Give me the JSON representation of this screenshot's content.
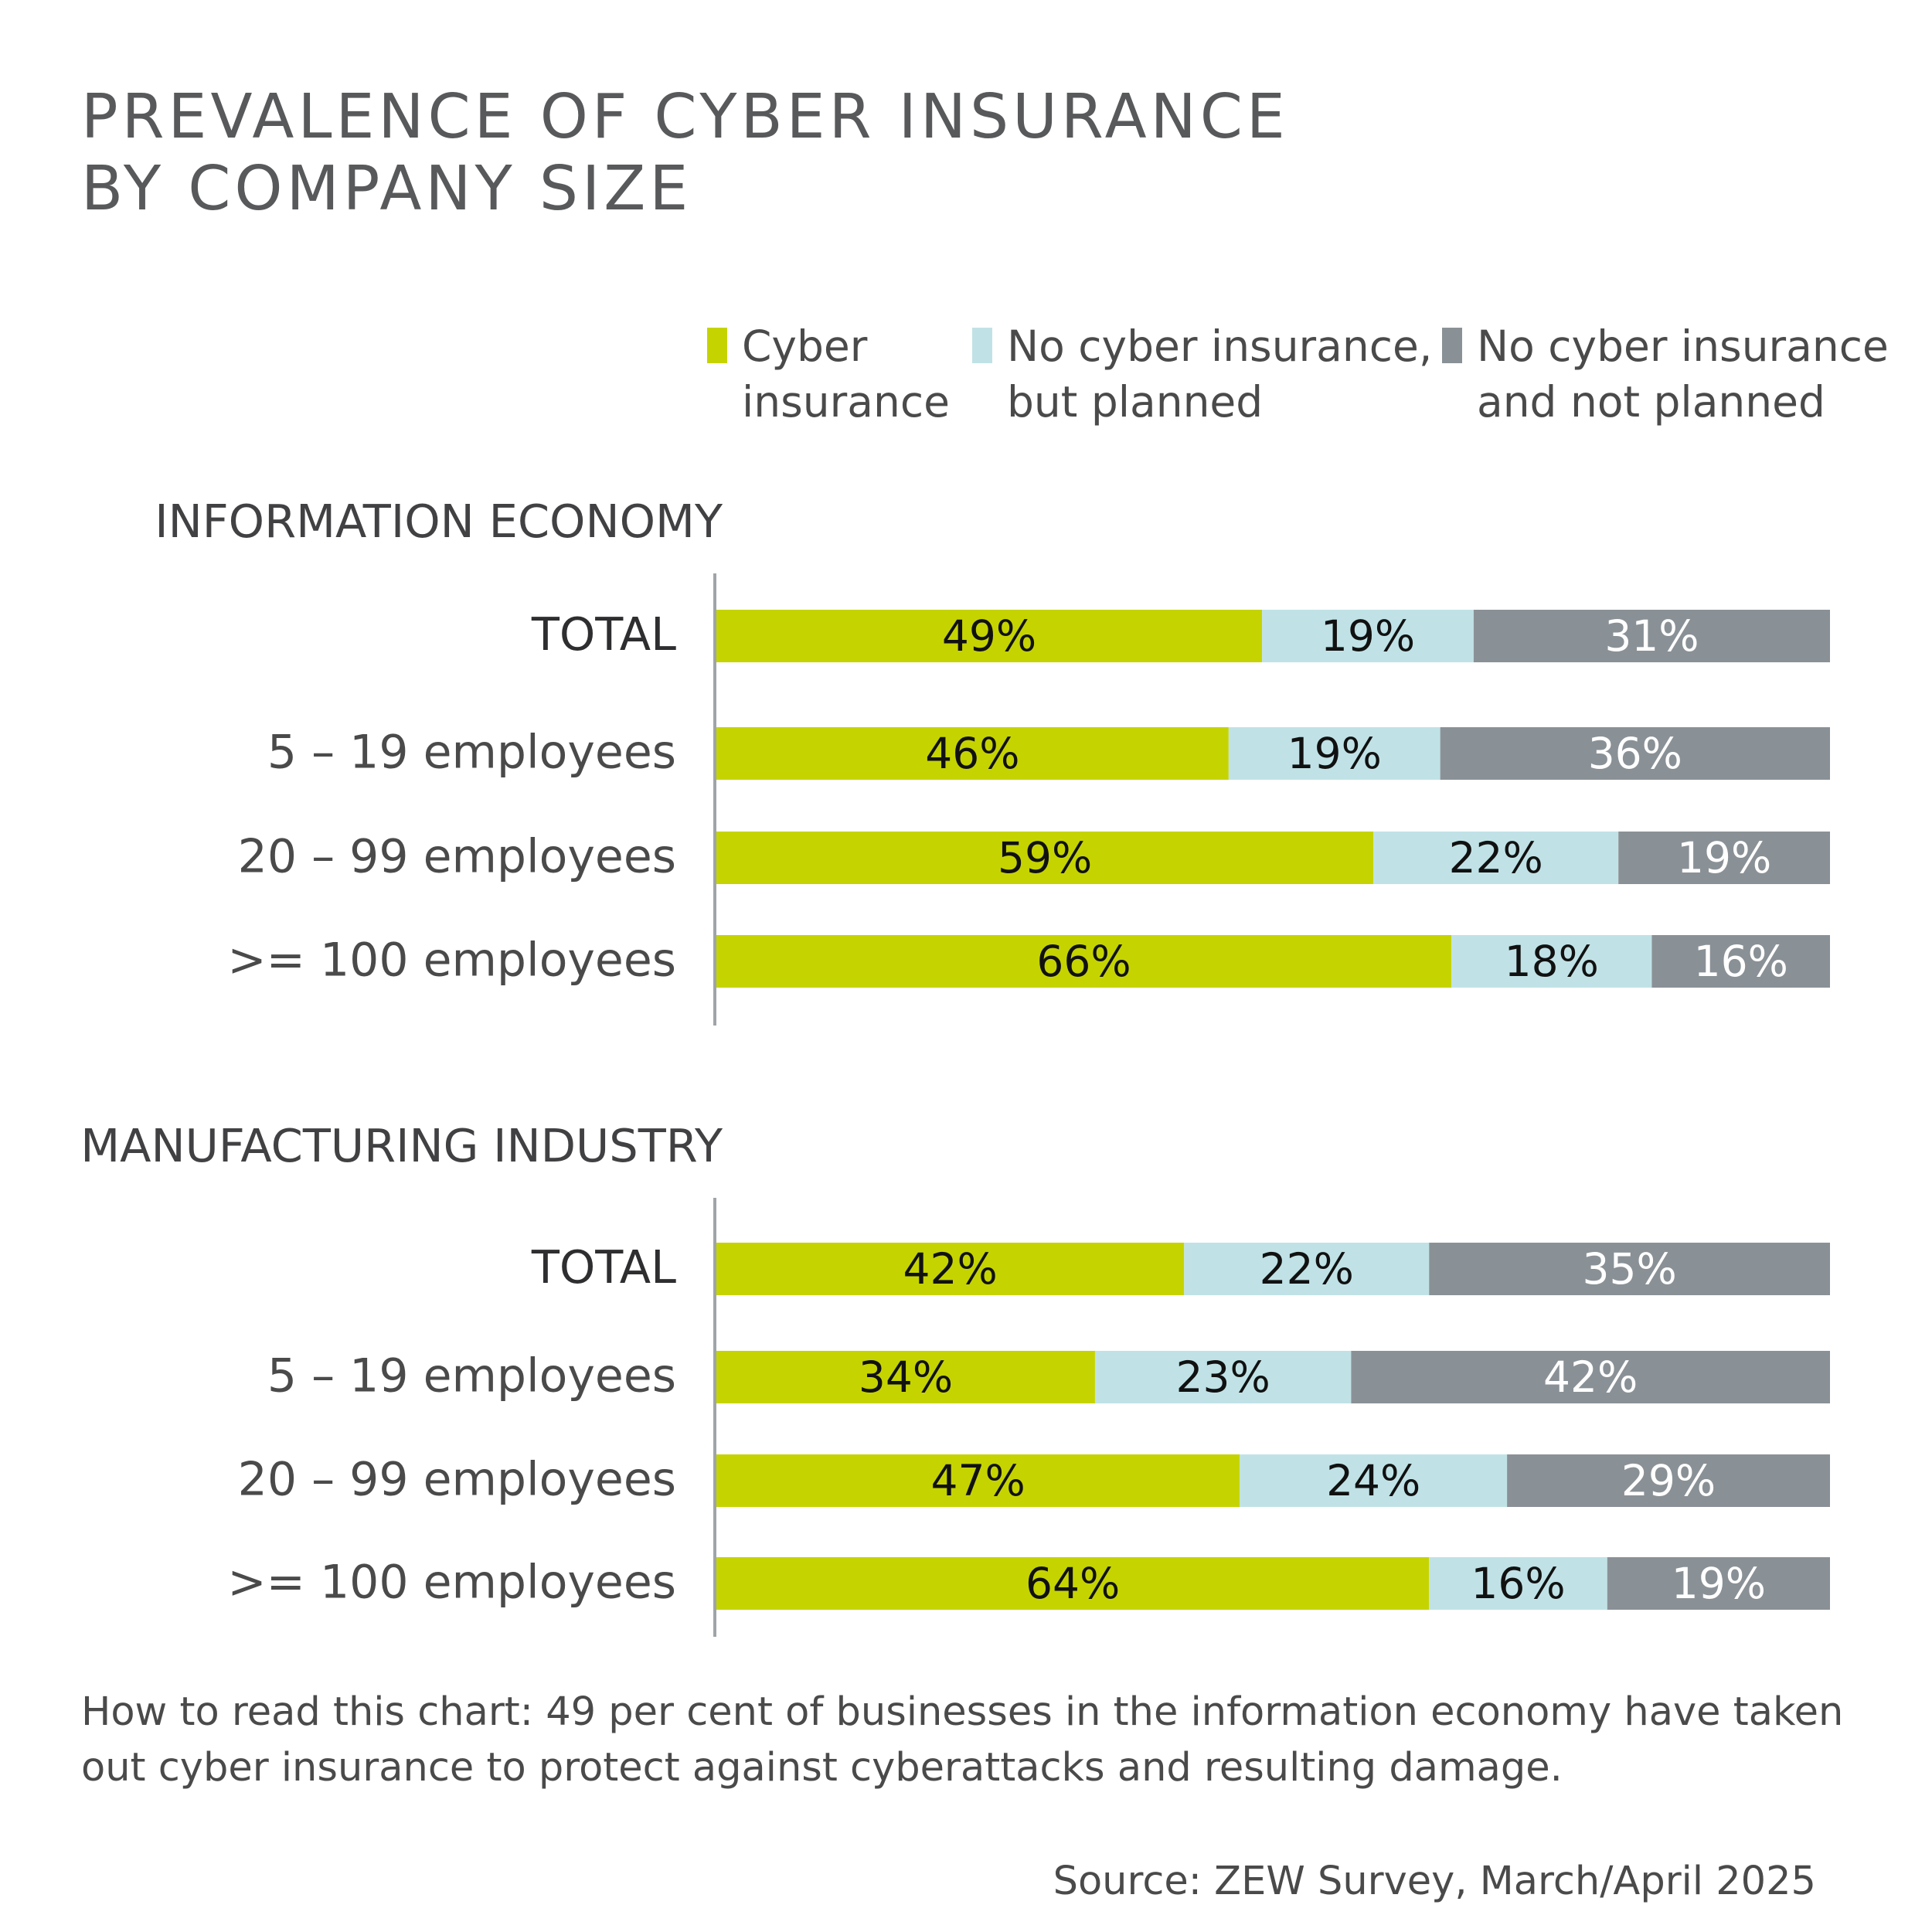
{
  "header": {
    "title_line1": "PREVALENCE OF CYBER INSURANCE",
    "title_line2": "BY COMPANY SIZE"
  },
  "legend": [
    {
      "line1": "Cyber",
      "line2": "insurance",
      "color": "#c5d400"
    },
    {
      "line1": "No cyber insurance,",
      "line2": "but planned",
      "color": "#c0e2e6"
    },
    {
      "line1": "No cyber insurance",
      "line2": "and not planned",
      "color": "#8a9196"
    }
  ],
  "chart_data": [
    {
      "type": "bar",
      "orientation": "horizontal",
      "stacked": true,
      "title": "INFORMATION ECONOMY",
      "categories": [
        "TOTAL",
        "5 – 19 employees",
        "20 – 99 employees",
        ">= 100 employees"
      ],
      "series": [
        {
          "name": "Cyber insurance",
          "color": "#c5d400",
          "values": [
            49,
            46,
            59,
            66
          ],
          "labels": [
            "49%",
            "46%",
            "59%",
            "66%"
          ]
        },
        {
          "name": "No cyber insurance, but planned",
          "color": "#c0e2e6",
          "values": [
            19,
            19,
            22,
            18
          ],
          "labels": [
            "19%",
            "19%",
            "22%",
            "18%"
          ]
        },
        {
          "name": "No cyber insurance and not planned",
          "color": "#8a9196",
          "values": [
            31,
            36,
            19,
            16
          ],
          "labels": [
            "31%",
            "36%",
            "19%",
            "16%"
          ]
        }
      ],
      "unit": "%",
      "legend_position": "top"
    },
    {
      "type": "bar",
      "orientation": "horizontal",
      "stacked": true,
      "title": "MANUFACTURING INDUSTRY",
      "categories": [
        "TOTAL",
        "5 – 19 employees",
        "20 – 99 employees",
        ">= 100 employees"
      ],
      "series": [
        {
          "name": "Cyber insurance",
          "color": "#c5d400",
          "values": [
            42,
            34,
            47,
            64
          ],
          "labels": [
            "42%",
            "34%",
            "47%",
            "64%"
          ]
        },
        {
          "name": "No cyber insurance, but planned",
          "color": "#c0e2e6",
          "values": [
            22,
            23,
            24,
            16
          ],
          "labels": [
            "22%",
            "23%",
            "24%",
            "16%"
          ]
        },
        {
          "name": "No cyber insurance and not planned",
          "color": "#8a9196",
          "values": [
            35,
            42,
            29,
            19
          ],
          "labels": [
            "35%",
            "42%",
            "29%",
            "19%"
          ]
        }
      ],
      "unit": "%",
      "legend_position": "top"
    }
  ],
  "footer": {
    "note_line1": "How to read this chart: 49 per cent of businesses in the information economy have taken",
    "note_line2": "out cyber insurance to protect against cyberattacks and resulting damage.",
    "source": "Source: ZEW Survey, March/April 2025"
  }
}
